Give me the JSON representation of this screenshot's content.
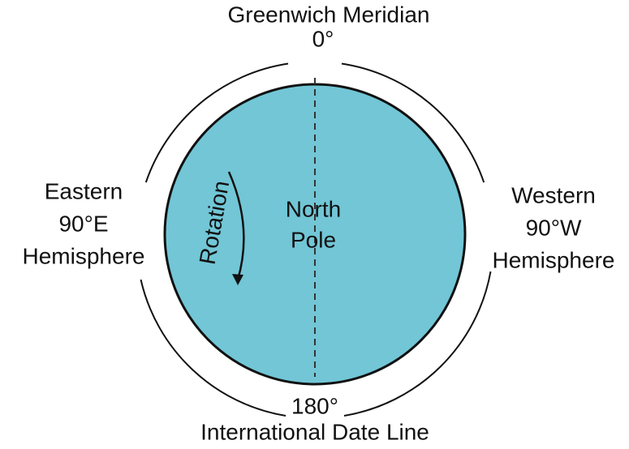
{
  "top": {
    "label": "Greenwich Meridian",
    "degree": "0°"
  },
  "left": {
    "lines": [
      "Eastern",
      "90°E",
      "Hemisphere"
    ]
  },
  "right": {
    "lines": [
      "Western",
      "90°W",
      "Hemisphere"
    ]
  },
  "center": {
    "lines": [
      "North",
      "Pole"
    ]
  },
  "rotation": "Rotation",
  "bottom": {
    "degree": "180°",
    "label": "International Date Line"
  }
}
